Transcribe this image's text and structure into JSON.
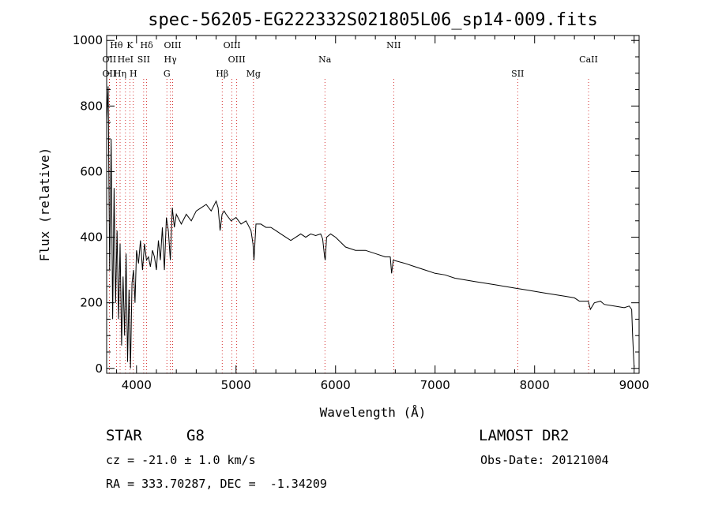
{
  "chart_data": {
    "type": "line",
    "title": "spec-56205-EG222332S021805L06_sp14-009.fits",
    "xlabel": "Wavelength (Å)",
    "ylabel": "Flux (relative)",
    "xlim": [
      3700,
      9050
    ],
    "ylim": [
      -15,
      1015
    ],
    "xticks": [
      4000,
      5000,
      6000,
      7000,
      8000,
      9000
    ],
    "yticks": [
      0,
      200,
      400,
      600,
      800,
      1000
    ],
    "line_color": "#000000",
    "marker_color": "#cc0000",
    "series": [
      {
        "x": [
          3700,
          3715,
          3730,
          3745,
          3760,
          3775,
          3790,
          3805,
          3820,
          3835,
          3850,
          3865,
          3880,
          3895,
          3910,
          3925,
          3940,
          3955,
          3970,
          3985,
          4000,
          4020,
          4040,
          4060,
          4080,
          4100,
          4120,
          4140,
          4160,
          4180,
          4200,
          4220,
          4240,
          4260,
          4280,
          4300,
          4320,
          4340,
          4360,
          4380,
          4400,
          4450,
          4500,
          4550,
          4600,
          4650,
          4700,
          4750,
          4800,
          4820,
          4840,
          4860,
          4880,
          4900,
          4950,
          5000,
          5050,
          5100,
          5150,
          5170,
          5180,
          5200,
          5250,
          5300,
          5350,
          5400,
          5450,
          5500,
          5550,
          5600,
          5650,
          5700,
          5750,
          5800,
          5850,
          5870,
          5890,
          5896,
          5910,
          5950,
          6000,
          6100,
          6200,
          6300,
          6400,
          6500,
          6550,
          6563,
          6580,
          6700,
          6800,
          6900,
          7000,
          7100,
          7200,
          7300,
          7400,
          7500,
          7600,
          7700,
          7800,
          7900,
          8000,
          8100,
          8200,
          8300,
          8400,
          8450,
          8500,
          8540,
          8560,
          8600,
          8662,
          8700,
          8800,
          8900,
          8950,
          8975,
          8985,
          8995,
          9000
        ],
        "y": [
          750,
          860,
          300,
          700,
          150,
          550,
          200,
          420,
          150,
          380,
          70,
          280,
          100,
          350,
          20,
          240,
          0,
          260,
          300,
          200,
          360,
          320,
          390,
          300,
          380,
          330,
          340,
          310,
          360,
          340,
          300,
          390,
          330,
          430,
          300,
          460,
          420,
          330,
          490,
          430,
          470,
          440,
          470,
          450,
          480,
          490,
          500,
          480,
          510,
          490,
          420,
          470,
          480,
          470,
          450,
          460,
          440,
          450,
          420,
          380,
          330,
          440,
          440,
          430,
          430,
          420,
          410,
          400,
          390,
          400,
          410,
          400,
          410,
          405,
          410,
          395,
          340,
          330,
          400,
          410,
          400,
          370,
          360,
          360,
          350,
          340,
          340,
          290,
          330,
          320,
          310,
          300,
          290,
          285,
          275,
          270,
          265,
          260,
          255,
          250,
          245,
          240,
          235,
          230,
          225,
          220,
          215,
          205,
          205,
          205,
          180,
          200,
          205,
          195,
          190,
          185,
          190,
          180,
          100,
          30,
          5
        ]
      }
    ],
    "lines": [
      {
        "name": "OII",
        "wave": 3727,
        "label_row": 1
      },
      {
        "name": "OII",
        "wave": 3727,
        "label_row": 2
      },
      {
        "name": "Hθ",
        "wave": 3798,
        "label_row": 0
      },
      {
        "name": "Hη",
        "wave": 3835,
        "label_row": 2
      },
      {
        "name": "HeI",
        "wave": 3889,
        "label_row": 1
      },
      {
        "name": "K",
        "wave": 3934,
        "label_row": 0
      },
      {
        "name": "H",
        "wave": 3968,
        "label_row": 2
      },
      {
        "name": "SII",
        "wave": 4072,
        "label_row": 1
      },
      {
        "name": "Hδ",
        "wave": 4102,
        "label_row": 0
      },
      {
        "name": "G",
        "wave": 4305,
        "label_row": 2
      },
      {
        "name": "Hγ",
        "wave": 4340,
        "label_row": 1
      },
      {
        "name": "OIII",
        "wave": 4363,
        "label_row": 0
      },
      {
        "name": "Hβ",
        "wave": 4861,
        "label_row": 2
      },
      {
        "name": "OIII",
        "wave": 4959,
        "label_row": 0
      },
      {
        "name": "OIII",
        "wave": 5007,
        "label_row": 1
      },
      {
        "name": "Mg",
        "wave": 5175,
        "label_row": 2
      },
      {
        "name": "Na",
        "wave": 5893,
        "label_row": 1
      },
      {
        "name": "NII",
        "wave": 6584,
        "label_row": 0
      },
      {
        "name": "SII",
        "wave": 7830,
        "label_row": 2
      },
      {
        "name": "CaII",
        "wave": 8542,
        "label_row": 1
      }
    ]
  },
  "info": {
    "class_label": "STAR",
    "subclass": "G8",
    "survey": "LAMOST DR2",
    "cz_label": "cz = -21.0 ± 1.0 km/s",
    "obs_date": "Obs-Date: 20121004",
    "coords": "RA = 333.70287, DEC =  -1.34209"
  }
}
